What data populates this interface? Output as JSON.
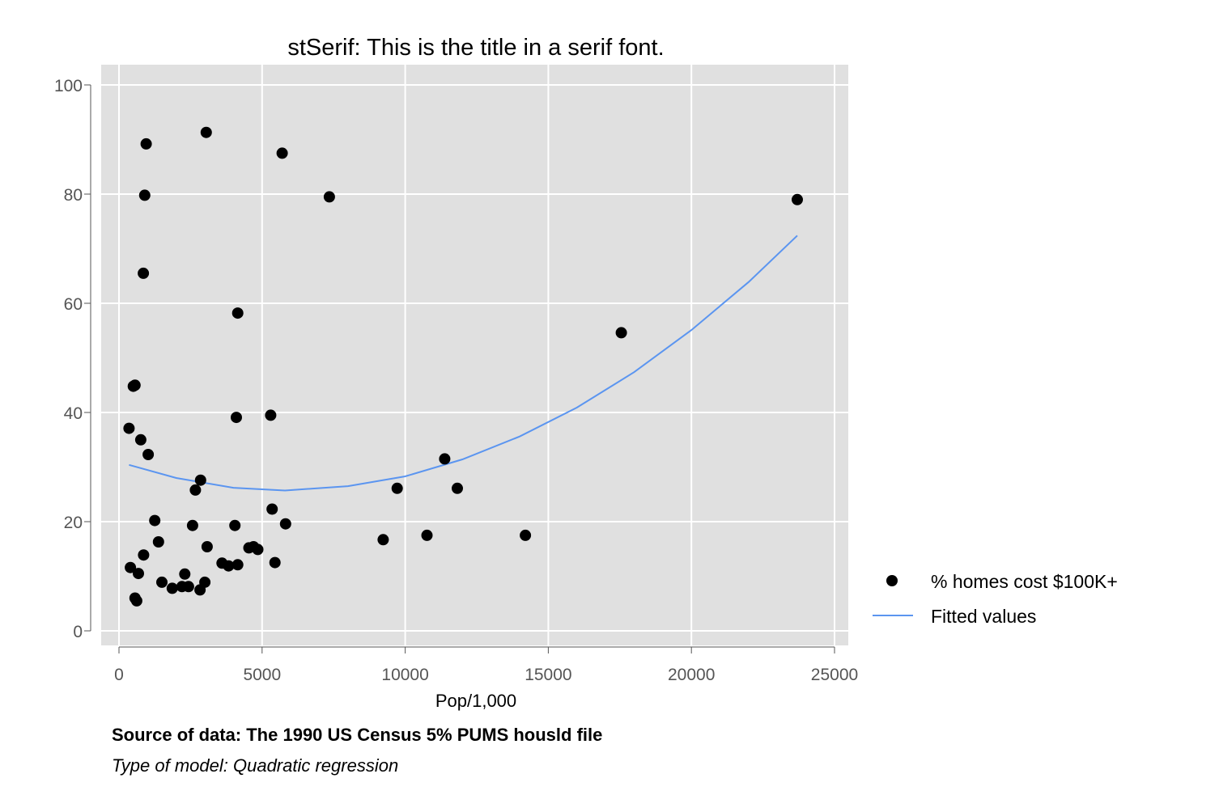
{
  "chart_data": {
    "type": "scatter",
    "title": "stSerif: This is the title in a serif font.",
    "xlabel": "Pop/1,000",
    "ylabel": "",
    "xlim": [
      -500,
      25500
    ],
    "ylim": [
      -3,
      102
    ],
    "xticks": [
      0,
      5000,
      10000,
      15000,
      20000,
      25000
    ],
    "yticks": [
      0,
      20,
      40,
      60,
      80,
      100
    ],
    "grid": true,
    "legend_position": "right",
    "series": [
      {
        "name": "% homes cost $100K+",
        "kind": "scatter",
        "color": "#000000",
        "points": [
          [
            950,
            89.2
          ],
          [
            3050,
            91.3
          ],
          [
            5700,
            87.5
          ],
          [
            900,
            79.8
          ],
          [
            7350,
            79.5
          ],
          [
            23700,
            79.0
          ],
          [
            850,
            65.5
          ],
          [
            4150,
            58.2
          ],
          [
            17550,
            54.6
          ],
          [
            500,
            44.8
          ],
          [
            560,
            45.0
          ],
          [
            4100,
            39.1
          ],
          [
            5300,
            39.5
          ],
          [
            350,
            37.1
          ],
          [
            760,
            35.0
          ],
          [
            1020,
            32.3
          ],
          [
            11380,
            31.5
          ],
          [
            2850,
            27.6
          ],
          [
            2670,
            25.8
          ],
          [
            9720,
            26.1
          ],
          [
            11820,
            26.1
          ],
          [
            5350,
            22.3
          ],
          [
            1250,
            20.2
          ],
          [
            2570,
            19.3
          ],
          [
            4050,
            19.3
          ],
          [
            5820,
            19.6
          ],
          [
            1380,
            16.3
          ],
          [
            9230,
            16.7
          ],
          [
            10760,
            17.5
          ],
          [
            14200,
            17.5
          ],
          [
            3080,
            15.4
          ],
          [
            4540,
            15.2
          ],
          [
            4700,
            15.4
          ],
          [
            4850,
            14.9
          ],
          [
            860,
            13.9
          ],
          [
            3600,
            12.4
          ],
          [
            3830,
            11.9
          ],
          [
            4150,
            12.1
          ],
          [
            5450,
            12.5
          ],
          [
            400,
            11.6
          ],
          [
            680,
            10.5
          ],
          [
            2300,
            10.4
          ],
          [
            1500,
            8.9
          ],
          [
            3000,
            8.9
          ],
          [
            1860,
            7.8
          ],
          [
            2200,
            8.1
          ],
          [
            2430,
            8.1
          ],
          [
            2830,
            7.5
          ],
          [
            560,
            6.0
          ],
          [
            620,
            5.5
          ]
        ]
      },
      {
        "name": "Fitted values",
        "kind": "line",
        "color": "#5b95f0",
        "model": "quadratic",
        "x": [
          350,
          2000,
          4000,
          5800,
          8000,
          10000,
          12000,
          14000,
          16000,
          18000,
          20000,
          22000,
          23700
        ],
        "y": [
          30.4,
          28.0,
          26.2,
          25.7,
          26.5,
          28.3,
          31.4,
          35.6,
          40.9,
          47.4,
          55.1,
          63.9,
          72.4
        ]
      }
    ]
  },
  "notes": {
    "source": "Source of data: The 1990 US Census 5% PUMS housld file",
    "model": "Type of model: Quadratic regression"
  }
}
